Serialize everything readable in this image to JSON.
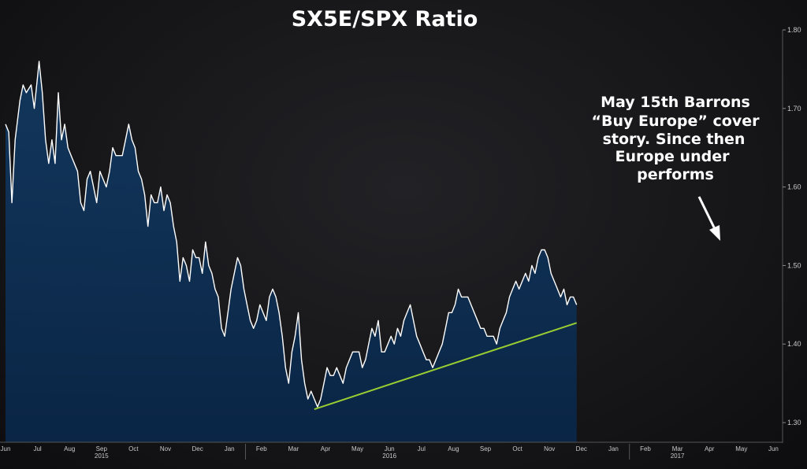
{
  "chart_data": {
    "type": "area",
    "title": "SX5E/SPX Ratio",
    "y_ticks": [
      "1.80",
      "1.70",
      "1.60",
      "1.50",
      "1.40",
      "1.30"
    ],
    "ylim": [
      1.275,
      1.8
    ],
    "x_months": [
      "Jun",
      "Jul",
      "Aug",
      "Sep",
      "Oct",
      "Nov",
      "Dec",
      "Jan",
      "Feb",
      "Mar",
      "Apr",
      "May",
      "Jun",
      "Jul",
      "Aug",
      "Sep",
      "Oct",
      "Nov",
      "Dec",
      "Jan",
      "Feb",
      "Mar",
      "Apr",
      "May",
      "Jun"
    ],
    "x_years": [
      {
        "label": "2015",
        "month_index": 3
      },
      {
        "label": "2016",
        "month_index": 12
      },
      {
        "label": "2017",
        "month_index": 21
      }
    ],
    "series": [
      {
        "type": "area",
        "values": [
          [
            0,
            1.68
          ],
          [
            0.1,
            1.67
          ],
          [
            0.2,
            1.58
          ],
          [
            0.3,
            1.66
          ],
          [
            0.45,
            1.71
          ],
          [
            0.55,
            1.73
          ],
          [
            0.65,
            1.72
          ],
          [
            0.8,
            1.73
          ],
          [
            0.9,
            1.7
          ],
          [
            1.0,
            1.74
          ],
          [
            1.05,
            1.76
          ],
          [
            1.15,
            1.72
          ],
          [
            1.25,
            1.66
          ],
          [
            1.35,
            1.63
          ],
          [
            1.45,
            1.66
          ],
          [
            1.55,
            1.63
          ],
          [
            1.65,
            1.72
          ],
          [
            1.75,
            1.66
          ],
          [
            1.85,
            1.68
          ],
          [
            1.95,
            1.65
          ],
          [
            2.05,
            1.64
          ],
          [
            2.15,
            1.63
          ],
          [
            2.25,
            1.62
          ],
          [
            2.35,
            1.58
          ],
          [
            2.45,
            1.57
          ],
          [
            2.55,
            1.61
          ],
          [
            2.65,
            1.62
          ],
          [
            2.75,
            1.6
          ],
          [
            2.85,
            1.58
          ],
          [
            2.95,
            1.62
          ],
          [
            3.05,
            1.61
          ],
          [
            3.15,
            1.6
          ],
          [
            3.25,
            1.62
          ],
          [
            3.35,
            1.65
          ],
          [
            3.45,
            1.64
          ],
          [
            3.55,
            1.64
          ],
          [
            3.65,
            1.64
          ],
          [
            3.75,
            1.66
          ],
          [
            3.85,
            1.68
          ],
          [
            3.95,
            1.66
          ],
          [
            4.05,
            1.65
          ],
          [
            4.15,
            1.62
          ],
          [
            4.25,
            1.61
          ],
          [
            4.35,
            1.59
          ],
          [
            4.45,
            1.55
          ],
          [
            4.55,
            1.59
          ],
          [
            4.65,
            1.58
          ],
          [
            4.75,
            1.58
          ],
          [
            4.85,
            1.6
          ],
          [
            4.95,
            1.57
          ],
          [
            5.05,
            1.59
          ],
          [
            5.15,
            1.58
          ],
          [
            5.25,
            1.55
          ],
          [
            5.35,
            1.53
          ],
          [
            5.45,
            1.48
          ],
          [
            5.55,
            1.51
          ],
          [
            5.65,
            1.5
          ],
          [
            5.75,
            1.48
          ],
          [
            5.85,
            1.52
          ],
          [
            5.95,
            1.51
          ],
          [
            6.05,
            1.51
          ],
          [
            6.15,
            1.49
          ],
          [
            6.25,
            1.53
          ],
          [
            6.35,
            1.5
          ],
          [
            6.45,
            1.49
          ],
          [
            6.55,
            1.47
          ],
          [
            6.65,
            1.46
          ],
          [
            6.75,
            1.42
          ],
          [
            6.85,
            1.41
          ],
          [
            6.95,
            1.44
          ],
          [
            7.05,
            1.47
          ],
          [
            7.15,
            1.49
          ],
          [
            7.25,
            1.51
          ],
          [
            7.35,
            1.5
          ],
          [
            7.45,
            1.47
          ],
          [
            7.55,
            1.45
          ],
          [
            7.65,
            1.43
          ],
          [
            7.75,
            1.42
          ],
          [
            7.85,
            1.43
          ],
          [
            7.95,
            1.45
          ],
          [
            8.05,
            1.44
          ],
          [
            8.15,
            1.43
          ],
          [
            8.25,
            1.46
          ],
          [
            8.35,
            1.47
          ],
          [
            8.45,
            1.46
          ],
          [
            8.55,
            1.44
          ],
          [
            8.65,
            1.41
          ],
          [
            8.75,
            1.37
          ],
          [
            8.85,
            1.35
          ],
          [
            8.95,
            1.39
          ],
          [
            9.05,
            1.41
          ],
          [
            9.15,
            1.44
          ],
          [
            9.25,
            1.38
          ],
          [
            9.35,
            1.35
          ],
          [
            9.45,
            1.33
          ],
          [
            9.55,
            1.34
          ],
          [
            9.65,
            1.33
          ],
          [
            9.75,
            1.32
          ],
          [
            9.85,
            1.33
          ],
          [
            9.95,
            1.35
          ],
          [
            10.05,
            1.37
          ],
          [
            10.15,
            1.36
          ],
          [
            10.25,
            1.36
          ],
          [
            10.35,
            1.37
          ],
          [
            10.45,
            1.36
          ],
          [
            10.55,
            1.35
          ],
          [
            10.65,
            1.37
          ],
          [
            10.75,
            1.38
          ],
          [
            10.85,
            1.39
          ],
          [
            10.95,
            1.39
          ],
          [
            11.05,
            1.39
          ],
          [
            11.15,
            1.37
          ],
          [
            11.25,
            1.38
          ],
          [
            11.35,
            1.4
          ],
          [
            11.45,
            1.42
          ],
          [
            11.55,
            1.41
          ],
          [
            11.65,
            1.43
          ],
          [
            11.75,
            1.39
          ],
          [
            11.85,
            1.39
          ],
          [
            11.95,
            1.4
          ],
          [
            12.05,
            1.41
          ],
          [
            12.15,
            1.4
          ],
          [
            12.25,
            1.42
          ],
          [
            12.35,
            1.41
          ],
          [
            12.45,
            1.43
          ],
          [
            12.55,
            1.44
          ],
          [
            12.65,
            1.45
          ],
          [
            12.75,
            1.43
          ],
          [
            12.85,
            1.41
          ],
          [
            12.95,
            1.4
          ],
          [
            13.05,
            1.39
          ],
          [
            13.15,
            1.38
          ],
          [
            13.25,
            1.38
          ],
          [
            13.35,
            1.37
          ],
          [
            13.45,
            1.38
          ],
          [
            13.55,
            1.39
          ],
          [
            13.65,
            1.4
          ],
          [
            13.75,
            1.42
          ],
          [
            13.85,
            1.44
          ],
          [
            13.95,
            1.44
          ],
          [
            14.05,
            1.45
          ],
          [
            14.15,
            1.47
          ],
          [
            14.25,
            1.46
          ],
          [
            14.35,
            1.46
          ],
          [
            14.45,
            1.46
          ],
          [
            14.55,
            1.45
          ],
          [
            14.65,
            1.44
          ],
          [
            14.75,
            1.43
          ],
          [
            14.85,
            1.42
          ],
          [
            14.95,
            1.42
          ],
          [
            15.05,
            1.41
          ],
          [
            15.15,
            1.41
          ],
          [
            15.25,
            1.41
          ],
          [
            15.35,
            1.4
          ],
          [
            15.45,
            1.42
          ],
          [
            15.55,
            1.43
          ],
          [
            15.65,
            1.44
          ],
          [
            15.75,
            1.46
          ],
          [
            15.85,
            1.47
          ],
          [
            15.95,
            1.48
          ],
          [
            16.05,
            1.47
          ],
          [
            16.15,
            1.48
          ],
          [
            16.25,
            1.49
          ],
          [
            16.35,
            1.48
          ],
          [
            16.45,
            1.5
          ],
          [
            16.55,
            1.49
          ],
          [
            16.65,
            1.51
          ],
          [
            16.75,
            1.52
          ],
          [
            16.85,
            1.52
          ],
          [
            16.95,
            1.51
          ],
          [
            17.05,
            1.49
          ],
          [
            17.15,
            1.48
          ],
          [
            17.25,
            1.47
          ],
          [
            17.35,
            1.46
          ],
          [
            17.45,
            1.47
          ],
          [
            17.55,
            1.45
          ],
          [
            17.65,
            1.46
          ],
          [
            17.75,
            1.46
          ],
          [
            17.85,
            1.45
          ]
        ]
      }
    ],
    "trendline": {
      "from": [
        9.65,
        1.317
      ],
      "to": [
        17.85,
        1.427
      ]
    },
    "annotation": {
      "lines": [
        "May 15th Barrons",
        "“Buy Europe” cover",
        "story.  Since then",
        "Europe under",
        "performs"
      ]
    },
    "colors": {
      "line": "#ffffff",
      "fill_top": "#0e2a4c",
      "fill_bottom": "#0a2545",
      "trend": "#9acd32",
      "axis": "#555555"
    }
  }
}
